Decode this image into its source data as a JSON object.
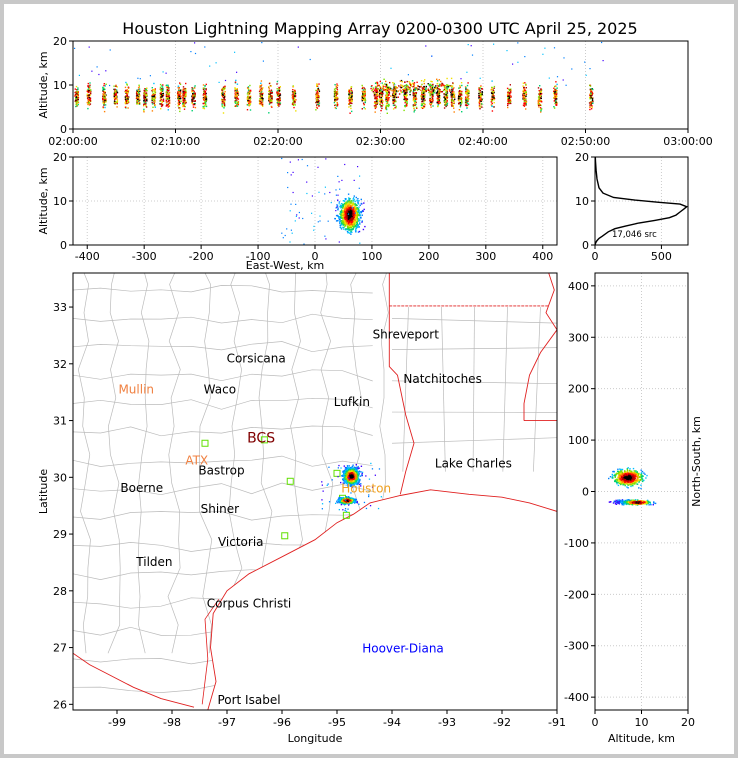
{
  "chart_data": {
    "type": "scatter",
    "title": "Houston Lightning Mapping Array 0200-0300 UTC April 25, 2025",
    "panels": {
      "time_altitude": {
        "ylabel": "Altitude, km",
        "ylim": [
          0,
          20
        ],
        "yticks": [
          "0",
          "10",
          "20"
        ],
        "xticks": [
          "02:00:00",
          "02:10:00",
          "02:20:00",
          "02:30:00",
          "02:40:00",
          "02:50:00",
          "03:00:00"
        ],
        "xlim_minutes": [
          0,
          60
        ],
        "bursts_minutes": [
          0.3,
          1.5,
          3.0,
          4.1,
          5.2,
          6.3,
          7.0,
          7.8,
          8.6,
          9.2,
          10.3,
          10.8,
          11.7,
          12.8,
          14.6,
          15.9,
          17.1,
          18.3,
          19.2,
          20.0,
          21.5,
          23.8,
          25.6,
          27.0,
          28.3,
          29.5,
          30.0,
          30.6,
          31.3,
          32.4,
          33.3,
          34.1,
          34.9,
          35.6,
          36.3,
          37.0,
          37.7,
          38.4,
          39.7,
          40.9,
          42.5,
          44.0,
          45.5,
          47.0,
          50.5
        ]
      },
      "east_west_altitude": {
        "xlabel": "East-West, km",
        "ylabel": "Altitude, km",
        "xlim": [
          -425,
          425
        ],
        "ylim": [
          0,
          20
        ],
        "xticks": [
          "-400",
          "-300",
          "-200",
          "-100",
          "0",
          "100",
          "200",
          "300",
          "400"
        ],
        "yticks": [
          "0",
          "10",
          "20"
        ]
      },
      "altitude_histogram": {
        "xticks": [
          "0",
          "500"
        ],
        "yticks": [
          "0",
          "10",
          "20"
        ],
        "xlim": [
          0,
          700
        ],
        "ylim": [
          0,
          20
        ],
        "label": "17,046 src",
        "profile": [
          [
            0,
            0
          ],
          [
            5,
            0.5
          ],
          [
            15,
            1
          ],
          [
            30,
            1.5
          ],
          [
            55,
            2
          ],
          [
            100,
            3
          ],
          [
            150,
            3.7
          ],
          [
            230,
            4.3
          ],
          [
            330,
            5
          ],
          [
            450,
            5.6
          ],
          [
            560,
            6.2
          ],
          [
            610,
            6.8
          ],
          [
            640,
            7.5
          ],
          [
            670,
            8.2
          ],
          [
            690,
            8.7
          ],
          [
            640,
            9.3
          ],
          [
            480,
            9.7
          ],
          [
            300,
            10.2
          ],
          [
            140,
            10.8
          ],
          [
            60,
            11.8
          ],
          [
            30,
            13
          ],
          [
            15,
            15
          ],
          [
            8,
            17
          ],
          [
            4,
            19
          ],
          [
            2,
            20
          ]
        ]
      },
      "map": {
        "xlabel": "Longitude",
        "ylabel": "Latitude",
        "xlim": [
          -99.8,
          -91
        ],
        "ylim": [
          25.9,
          33.6
        ],
        "xticks": [
          "-99",
          "-98",
          "-97",
          "-96",
          "-95",
          "-94",
          "-93",
          "-92",
          "-91"
        ],
        "yticks": [
          "26",
          "27",
          "28",
          "29",
          "30",
          "31",
          "32",
          "33"
        ],
        "places": [
          {
            "name": "Shreveport",
            "lon": -93.75,
            "lat": 32.52,
            "color": "#000000"
          },
          {
            "name": "Corsicana",
            "lon": -96.47,
            "lat": 32.09,
            "color": "#000000"
          },
          {
            "name": "Natchitoches",
            "lon": -93.08,
            "lat": 31.73,
            "color": "#000000"
          },
          {
            "name": "Mullin",
            "lon": -98.65,
            "lat": 31.55,
            "color": "#f08040"
          },
          {
            "name": "Waco",
            "lon": -97.13,
            "lat": 31.55,
            "color": "#000000"
          },
          {
            "name": "Lufkin",
            "lon": -94.73,
            "lat": 31.33,
            "color": "#000000"
          },
          {
            "name": "BCS",
            "lon": -96.38,
            "lat": 30.68,
            "color": "#800000"
          },
          {
            "name": "ATX",
            "lon": -97.55,
            "lat": 30.3,
            "color": "#f08040"
          },
          {
            "name": "Lake Charles",
            "lon": -92.52,
            "lat": 30.24,
            "color": "#000000"
          },
          {
            "name": "Bastrop",
            "lon": -97.1,
            "lat": 30.12,
            "color": "#000000"
          },
          {
            "name": "Boerne",
            "lon": -98.55,
            "lat": 29.81,
            "color": "#000000"
          },
          {
            "name": "Houston",
            "lon": -94.47,
            "lat": 29.8,
            "color": "#f0a020"
          },
          {
            "name": "Shiner",
            "lon": -97.13,
            "lat": 29.44,
            "color": "#000000"
          },
          {
            "name": "Victoria",
            "lon": -96.75,
            "lat": 28.86,
            "color": "#000000"
          },
          {
            "name": "Tilden",
            "lon": -98.32,
            "lat": 28.51,
            "color": "#000000"
          },
          {
            "name": "Corpus Christi",
            "lon": -96.6,
            "lat": 27.78,
            "color": "#000000"
          },
          {
            "name": "Hoover-Diana",
            "lon": -93.8,
            "lat": 26.98,
            "color": "#0000ff"
          },
          {
            "name": "Port Isabel",
            "lon": -96.6,
            "lat": 26.08,
            "color": "#000000"
          }
        ],
        "stations": [
          [
            -97.4,
            30.6
          ],
          [
            -95.85,
            29.93
          ],
          [
            -95.0,
            30.07
          ],
          [
            -94.9,
            29.63
          ],
          [
            -94.83,
            29.33
          ],
          [
            -95.95,
            28.97
          ],
          [
            -96.32,
            30.66
          ]
        ],
        "clusters": [
          {
            "lon": -94.75,
            "lat": 30.03,
            "count": 1100
          },
          {
            "lon": -94.83,
            "lat": 29.6,
            "count": 600
          }
        ]
      },
      "altitude_north_south": {
        "xlabel": "Altitude, km",
        "ylabel": "North-South, km",
        "xlim": [
          0,
          20
        ],
        "ylim": [
          -425,
          425
        ],
        "xticks": [
          "0",
          "10",
          "20"
        ],
        "yticks": [
          "-400",
          "-300",
          "-200",
          "-100",
          "0",
          "100",
          "200",
          "300",
          "400"
        ]
      }
    },
    "colormap": [
      "#4000ff",
      "#0080ff",
      "#00c0ff",
      "#00d070",
      "#80e000",
      "#f0e000",
      "#ff8000",
      "#ff0000",
      "#b00000",
      "#000000"
    ]
  }
}
